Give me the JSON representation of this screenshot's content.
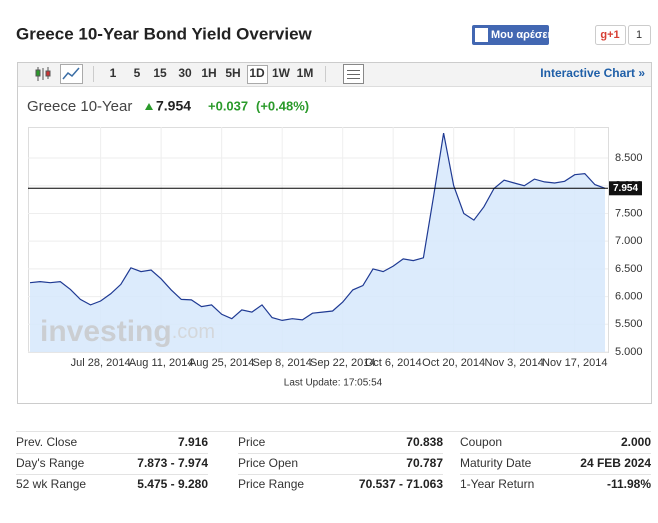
{
  "header": {
    "title": "Greece 10-Year Bond Yield Overview",
    "like_button": "Μου αρέσει",
    "gplus": "g+1",
    "gplus_count": "1"
  },
  "toolbar": {
    "intervals": [
      "1",
      "5",
      "15",
      "30",
      "1H",
      "5H",
      "1D",
      "1W",
      "1M"
    ],
    "link": "Interactive Chart »"
  },
  "chart_data": {
    "type": "area",
    "name": "Greece 10-Year",
    "last": 7.954,
    "change": "+0.037",
    "change_pct": "(+0.48%)",
    "color": "#1f3a93",
    "fill": "#d6e8fb",
    "categories": [
      null,
      null,
      null,
      null,
      null,
      null,
      null,
      "Jul 28, 2014",
      null,
      null,
      null,
      null,
      null,
      "Aug 11, 2014",
      null,
      null,
      null,
      null,
      null,
      "Aug 25, 2014",
      null,
      null,
      null,
      null,
      null,
      "Sep 8, 2014",
      null,
      null,
      null,
      null,
      null,
      "Sep 22, 2014",
      null,
      null,
      null,
      null,
      "Oct 6, 2014",
      null,
      null,
      null,
      null,
      null,
      "Oct 20, 2014",
      null,
      null,
      null,
      null,
      null,
      "Nov 3, 2014",
      null,
      null,
      null,
      null,
      null,
      "Nov 17, 2014",
      null,
      null,
      null
    ],
    "values": [
      6.25,
      6.27,
      6.25,
      6.27,
      6.13,
      5.95,
      5.85,
      5.92,
      6.05,
      6.22,
      6.52,
      6.45,
      6.48,
      6.32,
      6.12,
      5.95,
      5.94,
      5.82,
      5.85,
      5.68,
      5.6,
      5.76,
      5.72,
      5.85,
      5.62,
      5.57,
      5.6,
      5.58,
      5.7,
      5.72,
      5.74,
      5.9,
      6.12,
      6.2,
      6.5,
      6.45,
      6.55,
      6.68,
      6.65,
      6.7,
      7.8,
      8.95,
      8.0,
      7.5,
      7.38,
      7.62,
      7.95,
      8.1,
      8.05,
      8.0,
      8.12,
      8.07,
      8.05,
      8.08,
      8.2,
      8.22,
      8.02,
      7.954
    ],
    "ylim": [
      5.0,
      9.06
    ],
    "yticks": [
      {
        "value": 5.0,
        "label": "5.000"
      },
      {
        "value": 5.5,
        "label": "5.500"
      },
      {
        "value": 6.0,
        "label": "6.000"
      },
      {
        "value": 6.5,
        "label": "6.500"
      },
      {
        "value": 7.0,
        "label": "7.000"
      },
      {
        "value": 7.5,
        "label": "7.500"
      },
      {
        "value": 8.0,
        "label": "8.000"
      },
      {
        "value": 8.5,
        "label": "8.500"
      }
    ],
    "grid": true,
    "watermark": [
      "investing",
      ".com"
    ],
    "last_update": "Last Update: 17:05:54"
  },
  "quote_table": {
    "columns": [
      [
        [
          "Prev. Close",
          "7.916"
        ],
        [
          "Day's Range",
          "7.873 - 7.974"
        ],
        [
          "52 wk Range",
          "5.475 - 9.280"
        ]
      ],
      [
        [
          "Price",
          "70.838"
        ],
        [
          "Price Open",
          "70.787"
        ],
        [
          "Price Range",
          "70.537 - 71.063"
        ]
      ],
      [
        [
          "Coupon",
          "2.000"
        ],
        [
          "Maturity Date",
          "24 FEB 2024"
        ],
        [
          "1-Year Return",
          "-11.98%"
        ]
      ]
    ]
  }
}
